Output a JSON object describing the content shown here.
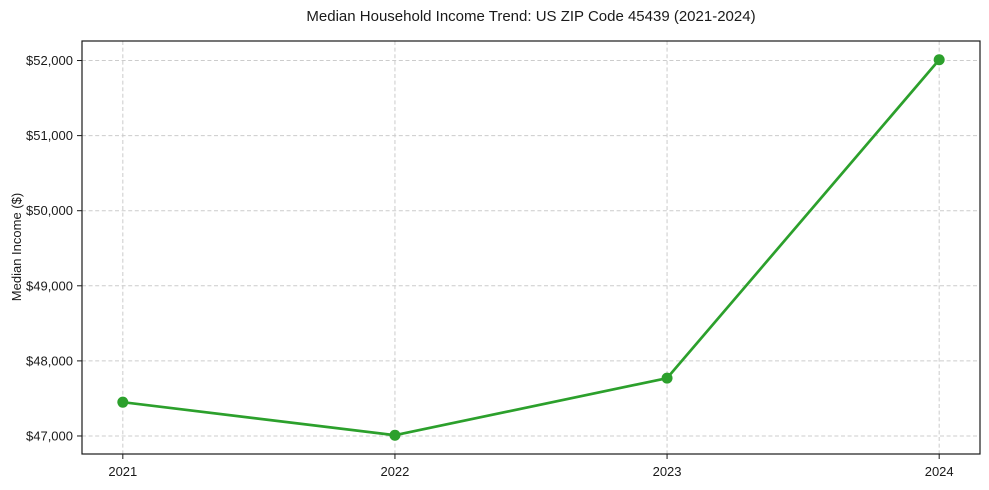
{
  "chart_data": {
    "type": "line",
    "title": "Median Household Income Trend: US ZIP Code 45439 (2021-2024)",
    "xlabel": "",
    "ylabel": "Median Income ($)",
    "x": [
      2021,
      2022,
      2023,
      2024
    ],
    "values": [
      47450,
      47010,
      47770,
      52010
    ],
    "xticks": [
      {
        "value": 2021,
        "label": "2021"
      },
      {
        "value": 2022,
        "label": "2022"
      },
      {
        "value": 2023,
        "label": "2023"
      },
      {
        "value": 2024,
        "label": "2024"
      }
    ],
    "yticks": [
      {
        "value": 47000,
        "label": "$47,000"
      },
      {
        "value": 48000,
        "label": "$48,000"
      },
      {
        "value": 49000,
        "label": "$49,000"
      },
      {
        "value": 50000,
        "label": "$50,000"
      },
      {
        "value": 51000,
        "label": "$51,000"
      },
      {
        "value": 52000,
        "label": "$52,000"
      }
    ],
    "xlim": [
      2020.85,
      2024.15
    ],
    "ylim": [
      46760,
      52260
    ],
    "grid": true,
    "grid_style": "dashed",
    "legend": "none",
    "line_color": "#2ca02c",
    "marker": "circle",
    "background": "#ffffff",
    "text_color": "#1a1a1a",
    "grid_color": "#cccccc"
  }
}
